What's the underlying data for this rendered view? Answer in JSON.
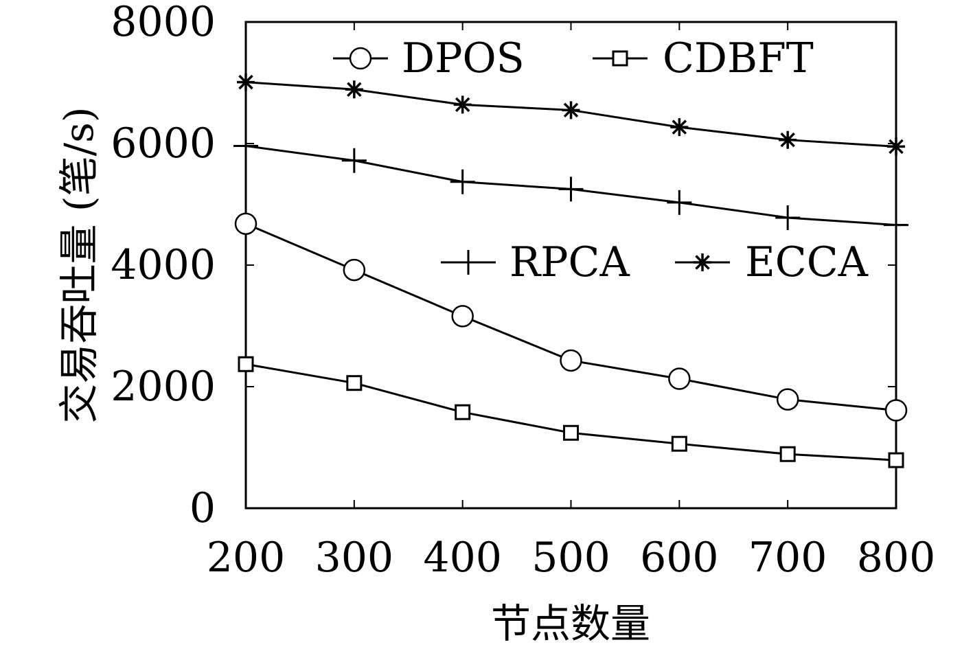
{
  "chart_data": {
    "type": "line",
    "xlabel": "节点数量",
    "ylabel": "交易吞吐量 (笔/s)",
    "x": [
      200,
      300,
      400,
      500,
      600,
      700,
      800
    ],
    "xlim": [
      200,
      800
    ],
    "ylim": [
      0,
      8000
    ],
    "x_ticks": [
      "200",
      "300",
      "400",
      "500",
      "600",
      "700",
      "800"
    ],
    "y_ticks": [
      "0",
      "2000",
      "4000",
      "6000",
      "8000"
    ],
    "grid": false,
    "legend_placement": "top",
    "series": [
      {
        "name": "DPOS",
        "marker": "circle",
        "values": [
          4680,
          3920,
          3160,
          2430,
          2130,
          1790,
          1610
        ]
      },
      {
        "name": "CDBFT",
        "marker": "square",
        "values": [
          2370,
          2060,
          1580,
          1240,
          1060,
          890,
          790
        ]
      },
      {
        "name": "RPCA",
        "marker": "plus",
        "values": [
          5960,
          5720,
          5370,
          5250,
          5030,
          4780,
          4660
        ]
      },
      {
        "name": "ECCA",
        "marker": "star",
        "values": [
          7010,
          6890,
          6640,
          6550,
          6270,
          6060,
          5950
        ]
      }
    ]
  }
}
